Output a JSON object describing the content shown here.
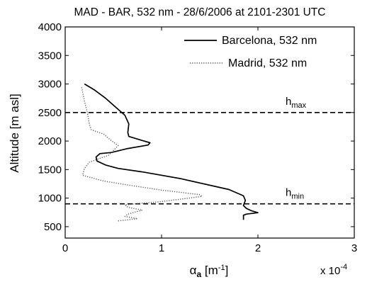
{
  "chart_data": {
    "type": "line",
    "title": "MAD - BAR, 532 nm - 28/6/2006 at 2101-2301 UTC",
    "xlabel": {
      "base": "α",
      "sub": "a",
      "unit_open": " [m",
      "unit_sup": "-1",
      "unit_close": "]"
    },
    "ylabel": "Altitude [m asl]",
    "x_multiplier": {
      "text": "x 10",
      "sup": "-4"
    },
    "xlim": [
      0,
      3
    ],
    "ylim": [
      300,
      4000
    ],
    "xticks": [
      0,
      1,
      2,
      3
    ],
    "xtick_labels": [
      "0",
      "1",
      "2",
      "3"
    ],
    "yticks": [
      500,
      1000,
      1500,
      2000,
      2500,
      3000,
      3500,
      4000
    ],
    "ytick_labels": [
      "500",
      "1000",
      "1500",
      "2000",
      "2500",
      "3000",
      "3500",
      "4000"
    ],
    "grid": false,
    "legend_position": "top-right",
    "series": [
      {
        "name": "Barcelona, 532 nm",
        "style": "solid",
        "color": "#000000",
        "x": [
          1.85,
          1.85,
          1.88,
          2.0,
          1.93,
          1.88,
          1.85,
          1.87,
          1.85,
          1.7,
          1.2,
          0.8,
          0.55,
          0.42,
          0.33,
          0.32,
          0.36,
          0.48,
          0.65,
          0.86,
          0.88,
          0.8,
          0.66,
          0.65,
          0.66,
          0.62,
          0.52,
          0.42,
          0.3,
          0.2
        ],
        "y": [
          620,
          700,
          720,
          745,
          780,
          820,
          870,
          960,
          1040,
          1150,
          1340,
          1460,
          1520,
          1580,
          1650,
          1720,
          1780,
          1800,
          1870,
          1930,
          1970,
          2010,
          2080,
          2150,
          2300,
          2450,
          2600,
          2750,
          2900,
          3000
        ]
      },
      {
        "name": "Madrid, 532 nm",
        "style": "dotted",
        "color": "#555555",
        "x": [
          0.55,
          0.75,
          0.62,
          0.65,
          0.8,
          0.65,
          0.62,
          0.72,
          1.0,
          1.42,
          1.4,
          1.0,
          0.65,
          0.4,
          0.18,
          0.2,
          0.25,
          0.45,
          0.55,
          0.47,
          0.4,
          0.27,
          0.25,
          0.23,
          0.2,
          0.17
        ],
        "y": [
          600,
          640,
          680,
          720,
          790,
          840,
          880,
          900,
          940,
          1030,
          1060,
          1140,
          1230,
          1300,
          1400,
          1520,
          1630,
          1750,
          1920,
          2020,
          2120,
          2200,
          2300,
          2500,
          2700,
          2950
        ]
      }
    ],
    "reference_lines": [
      {
        "y": 2500,
        "style": "dashed",
        "label_base": "h",
        "label_sub": "max"
      },
      {
        "y": 900,
        "style": "dashed",
        "label_base": "h",
        "label_sub": "min"
      }
    ]
  }
}
